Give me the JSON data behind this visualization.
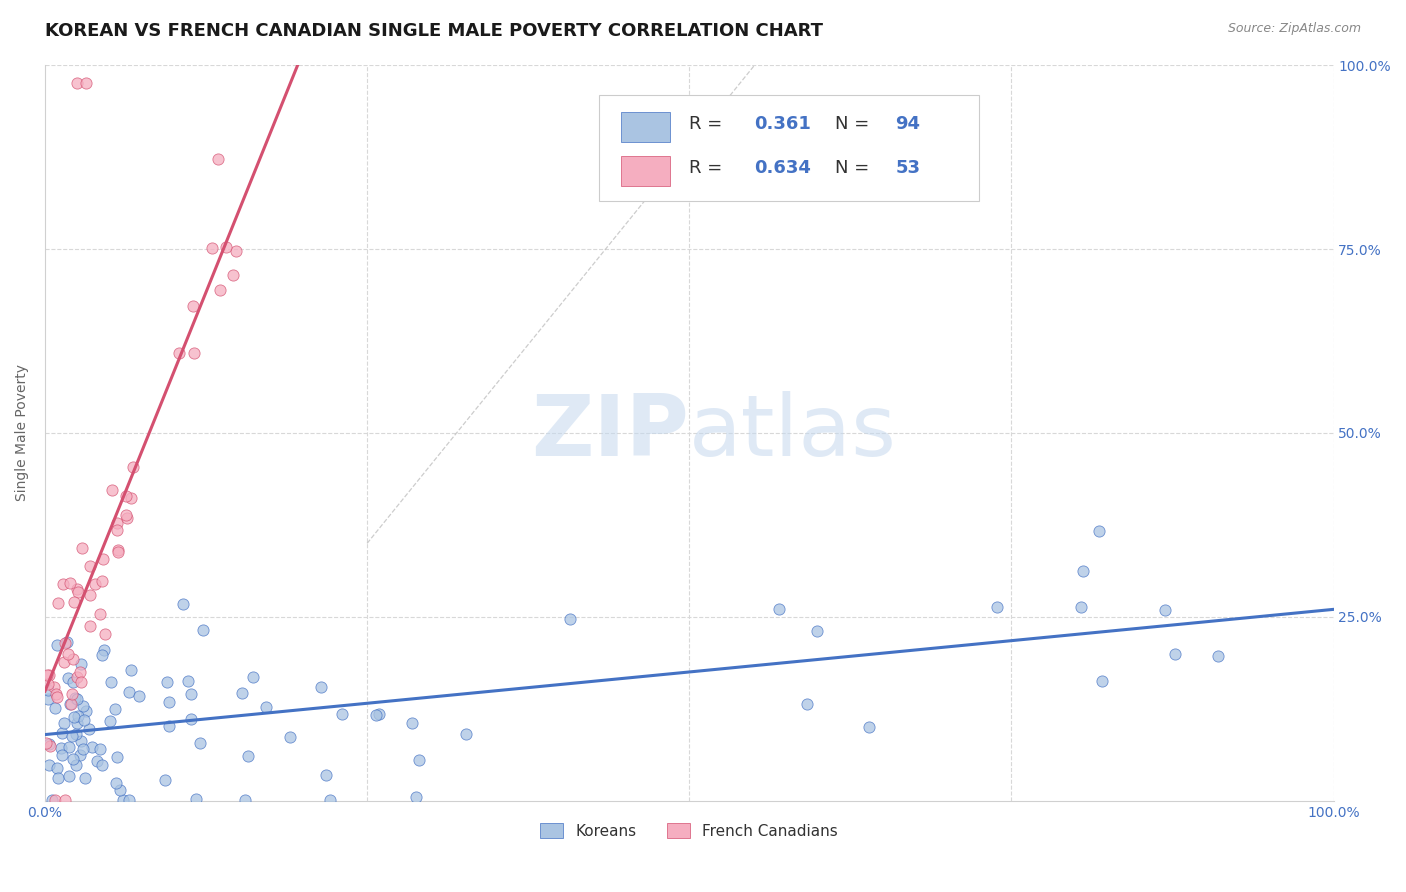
{
  "title": "KOREAN VS FRENCH CANADIAN SINGLE MALE POVERTY CORRELATION CHART",
  "source": "Source: ZipAtlas.com",
  "ylabel": "Single Male Poverty",
  "xlim": [
    0.0,
    1.0
  ],
  "ylim": [
    0.0,
    1.0
  ],
  "korean_R": "0.361",
  "korean_N": "94",
  "french_R": "0.634",
  "french_N": "53",
  "korean_color": "#aac4e2",
  "french_color": "#f5aec0",
  "korean_line_color": "#4472c4",
  "french_line_color": "#d45070",
  "background_color": "#ffffff",
  "grid_color": "#e0e0e0",
  "watermark_zip_color": "#c5d8ee",
  "watermark_atlas_color": "#c5d8ee",
  "title_fontsize": 13,
  "axis_label_fontsize": 10,
  "tick_fontsize": 10,
  "legend_fontsize": 13
}
